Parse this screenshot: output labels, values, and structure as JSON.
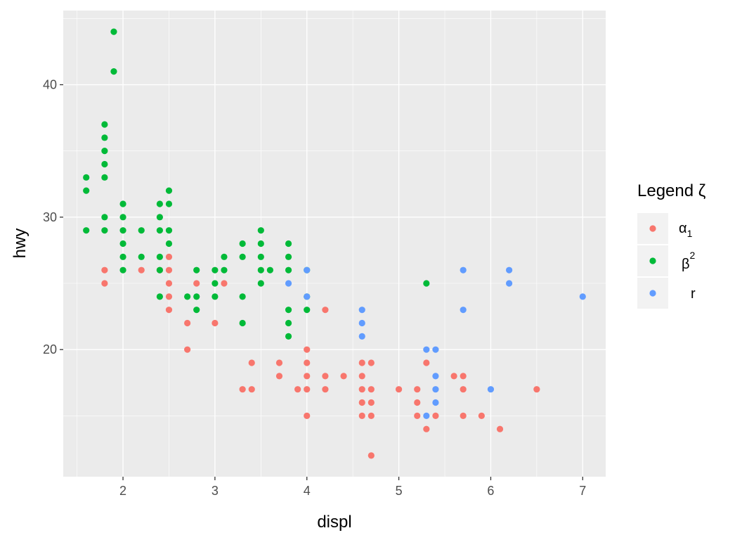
{
  "chart_data": {
    "type": "scatter",
    "xlabel": "displ",
    "ylabel": "hwy",
    "xlim": [
      1.35,
      7.25
    ],
    "ylim": [
      10.4,
      45.6
    ],
    "x_ticks": [
      2,
      3,
      4,
      5,
      6,
      7
    ],
    "y_ticks": [
      20,
      30,
      40
    ],
    "grid": true,
    "legend": {
      "title": "Legend ζ",
      "placement": "right",
      "entries": [
        {
          "base": "α",
          "sub": "1",
          "sup": ""
        },
        {
          "base": "β",
          "sub": "",
          "sup": "2"
        },
        {
          "base": "r",
          "sub": "",
          "sup": ""
        }
      ]
    },
    "series": [
      {
        "color": "#F8766D",
        "points": [
          [
            1.8,
            26
          ],
          [
            1.8,
            25
          ],
          [
            2.2,
            26
          ],
          [
            2.4,
            26
          ],
          [
            2.5,
            27
          ],
          [
            2.5,
            26
          ],
          [
            2.5,
            25
          ],
          [
            2.5,
            24
          ],
          [
            2.5,
            23
          ],
          [
            2.7,
            22
          ],
          [
            2.7,
            20
          ],
          [
            2.8,
            25
          ],
          [
            3.0,
            22
          ],
          [
            3.1,
            25
          ],
          [
            3.3,
            17
          ],
          [
            3.4,
            19
          ],
          [
            3.4,
            17
          ],
          [
            3.7,
            19
          ],
          [
            3.7,
            18
          ],
          [
            3.9,
            17
          ],
          [
            4.0,
            20
          ],
          [
            4.0,
            19
          ],
          [
            4.0,
            18
          ],
          [
            4.0,
            17
          ],
          [
            4.0,
            15
          ],
          [
            4.2,
            23
          ],
          [
            4.2,
            18
          ],
          [
            4.2,
            17
          ],
          [
            4.4,
            18
          ],
          [
            4.6,
            19
          ],
          [
            4.6,
            18
          ],
          [
            4.6,
            17
          ],
          [
            4.6,
            16
          ],
          [
            4.6,
            15
          ],
          [
            4.7,
            19
          ],
          [
            4.7,
            17
          ],
          [
            4.7,
            16
          ],
          [
            4.7,
            15
          ],
          [
            4.7,
            12
          ],
          [
            5.0,
            17
          ],
          [
            5.2,
            17
          ],
          [
            5.2,
            16
          ],
          [
            5.2,
            15
          ],
          [
            5.3,
            19
          ],
          [
            5.3,
            14
          ],
          [
            5.4,
            15
          ],
          [
            5.6,
            18
          ],
          [
            5.7,
            18
          ],
          [
            5.7,
            17
          ],
          [
            5.7,
            15
          ],
          [
            5.9,
            15
          ],
          [
            6.1,
            14
          ],
          [
            6.5,
            17
          ]
        ]
      },
      {
        "color": "#00BA38",
        "points": [
          [
            1.6,
            33
          ],
          [
            1.6,
            32
          ],
          [
            1.6,
            29
          ],
          [
            1.8,
            37
          ],
          [
            1.8,
            36
          ],
          [
            1.8,
            35
          ],
          [
            1.8,
            34
          ],
          [
            1.8,
            33
          ],
          [
            1.8,
            30
          ],
          [
            1.8,
            29
          ],
          [
            1.9,
            44
          ],
          [
            1.9,
            41
          ],
          [
            2.0,
            31
          ],
          [
            2.0,
            30
          ],
          [
            2.0,
            29
          ],
          [
            2.0,
            28
          ],
          [
            2.0,
            27
          ],
          [
            2.0,
            26
          ],
          [
            2.2,
            29
          ],
          [
            2.2,
            27
          ],
          [
            2.4,
            31
          ],
          [
            2.4,
            30
          ],
          [
            2.4,
            29
          ],
          [
            2.4,
            27
          ],
          [
            2.4,
            26
          ],
          [
            2.4,
            24
          ],
          [
            2.5,
            32
          ],
          [
            2.5,
            31
          ],
          [
            2.5,
            29
          ],
          [
            2.5,
            28
          ],
          [
            2.7,
            24
          ],
          [
            2.8,
            26
          ],
          [
            2.8,
            24
          ],
          [
            2.8,
            23
          ],
          [
            3.0,
            26
          ],
          [
            3.0,
            25
          ],
          [
            3.0,
            24
          ],
          [
            3.1,
            27
          ],
          [
            3.1,
            26
          ],
          [
            3.3,
            28
          ],
          [
            3.3,
            27
          ],
          [
            3.3,
            24
          ],
          [
            3.3,
            22
          ],
          [
            3.5,
            29
          ],
          [
            3.5,
            28
          ],
          [
            3.5,
            27
          ],
          [
            3.5,
            26
          ],
          [
            3.5,
            25
          ],
          [
            3.6,
            26
          ],
          [
            3.8,
            28
          ],
          [
            3.8,
            27
          ],
          [
            3.8,
            26
          ],
          [
            3.8,
            23
          ],
          [
            3.8,
            22
          ],
          [
            3.8,
            21
          ],
          [
            4.0,
            26
          ],
          [
            4.0,
            24
          ],
          [
            4.0,
            23
          ],
          [
            5.3,
            25
          ]
        ]
      },
      {
        "color": "#619CFF",
        "points": [
          [
            3.8,
            25
          ],
          [
            4.0,
            26
          ],
          [
            4.0,
            24
          ],
          [
            4.6,
            23
          ],
          [
            4.6,
            22
          ],
          [
            4.6,
            21
          ],
          [
            5.3,
            20
          ],
          [
            5.3,
            15
          ],
          [
            5.4,
            20
          ],
          [
            5.4,
            18
          ],
          [
            5.4,
            17
          ],
          [
            5.4,
            16
          ],
          [
            5.7,
            26
          ],
          [
            5.7,
            23
          ],
          [
            6.0,
            17
          ],
          [
            6.2,
            26
          ],
          [
            6.2,
            25
          ],
          [
            7.0,
            24
          ]
        ]
      }
    ]
  }
}
